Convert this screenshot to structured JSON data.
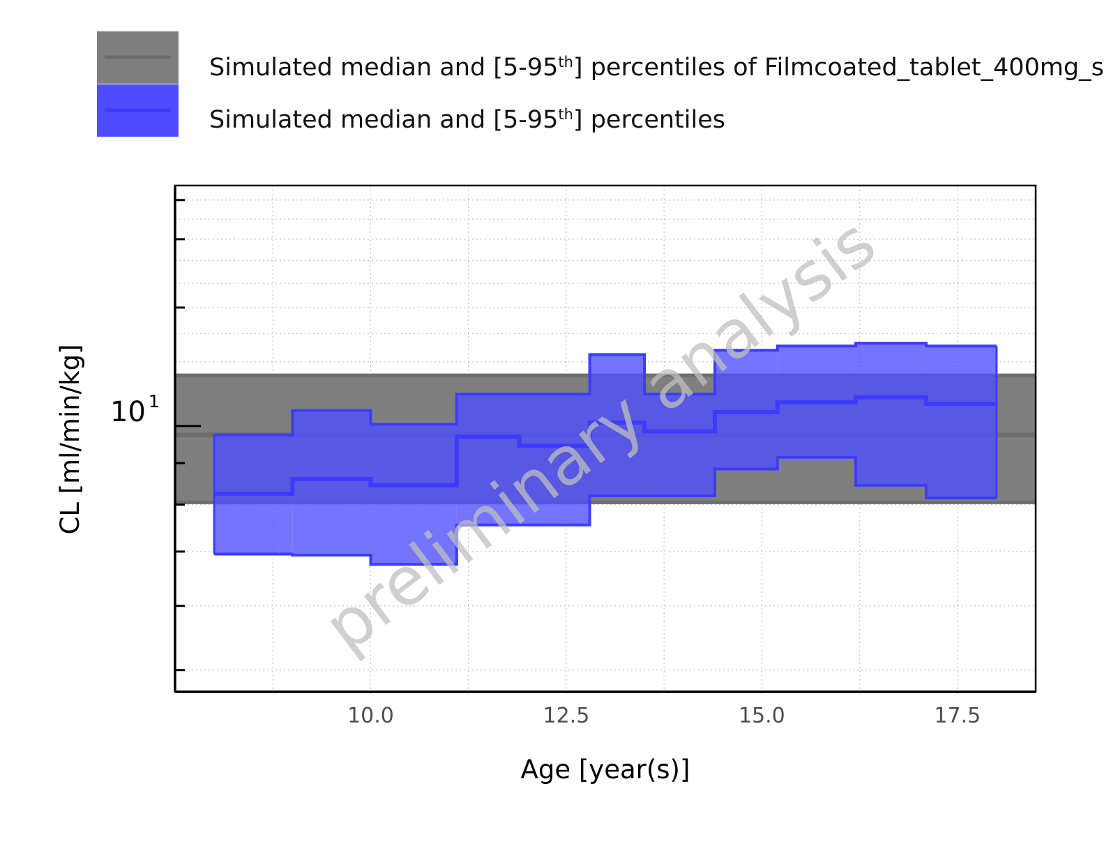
{
  "colors": {
    "reference_fill": "#7f7f7f",
    "reference_median": "#6e6e6e",
    "simulated_fill": "#4d4dff",
    "simulated_line": "#3c3cff",
    "grid": "#c8c8c8",
    "axis": "#000000"
  },
  "watermark": "preliminary analysis",
  "chart_data": {
    "type": "area",
    "xlabel": "Age [year(s)]",
    "ylabel": "CL [ml/min/kg]",
    "xlim": [
      7.5,
      18.5
    ],
    "ylim": [
      4.7,
      19.8
    ],
    "yscale": "log",
    "grid": true,
    "legend_position": "top",
    "x_ticks": [
      "10.0",
      "12.5",
      "15.0",
      "17.5"
    ],
    "x_tick_values": [
      10.0,
      12.5,
      15.0,
      17.5
    ],
    "y_tick_label": {
      "base": "10",
      "exponent": "1"
    },
    "y_tick_value": 10,
    "legend": [
      {
        "label_pre": "Simulated median and [5-95",
        "label_sup": "th",
        "label_post": "] percentiles of Filmcoated_tablet_400mg_s"
      },
      {
        "label_pre": "Simulated median and [5-95",
        "label_sup": "th",
        "label_post": "] percentiles"
      }
    ],
    "series": [
      {
        "name": "Simulated median and [5-95th] percentiles of Filmcoated_tablet_400mg_s",
        "kind": "reference-band",
        "x_range": [
          7.5,
          18.5
        ],
        "median": 9.75,
        "p5": 8.05,
        "p95": 11.55
      },
      {
        "name": "Simulated median and [5-95th] percentiles",
        "kind": "step-band",
        "bins": [
          {
            "x0": 8.0,
            "x1": 9.0,
            "median": 8.25,
            "p5": 6.95,
            "p95": 9.75
          },
          {
            "x0": 9.0,
            "x1": 10.0,
            "median": 8.6,
            "p5": 6.93,
            "p95": 10.45
          },
          {
            "x0": 10.0,
            "x1": 11.1,
            "median": 8.45,
            "p5": 6.75,
            "p95": 10.05
          },
          {
            "x0": 11.1,
            "x1": 11.9,
            "median": 9.7,
            "p5": 7.55,
            "p95": 10.95
          },
          {
            "x0": 11.9,
            "x1": 12.8,
            "median": 9.45,
            "p5": 7.55,
            "p95": 10.95
          },
          {
            "x0": 12.8,
            "x1": 13.5,
            "median": 10.1,
            "p5": 8.2,
            "p95": 12.25
          },
          {
            "x0": 13.5,
            "x1": 14.4,
            "median": 9.85,
            "p5": 8.2,
            "p95": 10.95
          },
          {
            "x0": 14.4,
            "x1": 15.2,
            "median": 10.4,
            "p5": 8.85,
            "p95": 12.4
          },
          {
            "x0": 15.2,
            "x1": 16.2,
            "median": 10.7,
            "p5": 9.15,
            "p95": 12.55
          },
          {
            "x0": 16.2,
            "x1": 17.1,
            "median": 10.85,
            "p5": 8.45,
            "p95": 12.65
          },
          {
            "x0": 17.1,
            "x1": 18.0,
            "median": 10.65,
            "p5": 8.15,
            "p95": 12.55
          }
        ]
      }
    ]
  }
}
